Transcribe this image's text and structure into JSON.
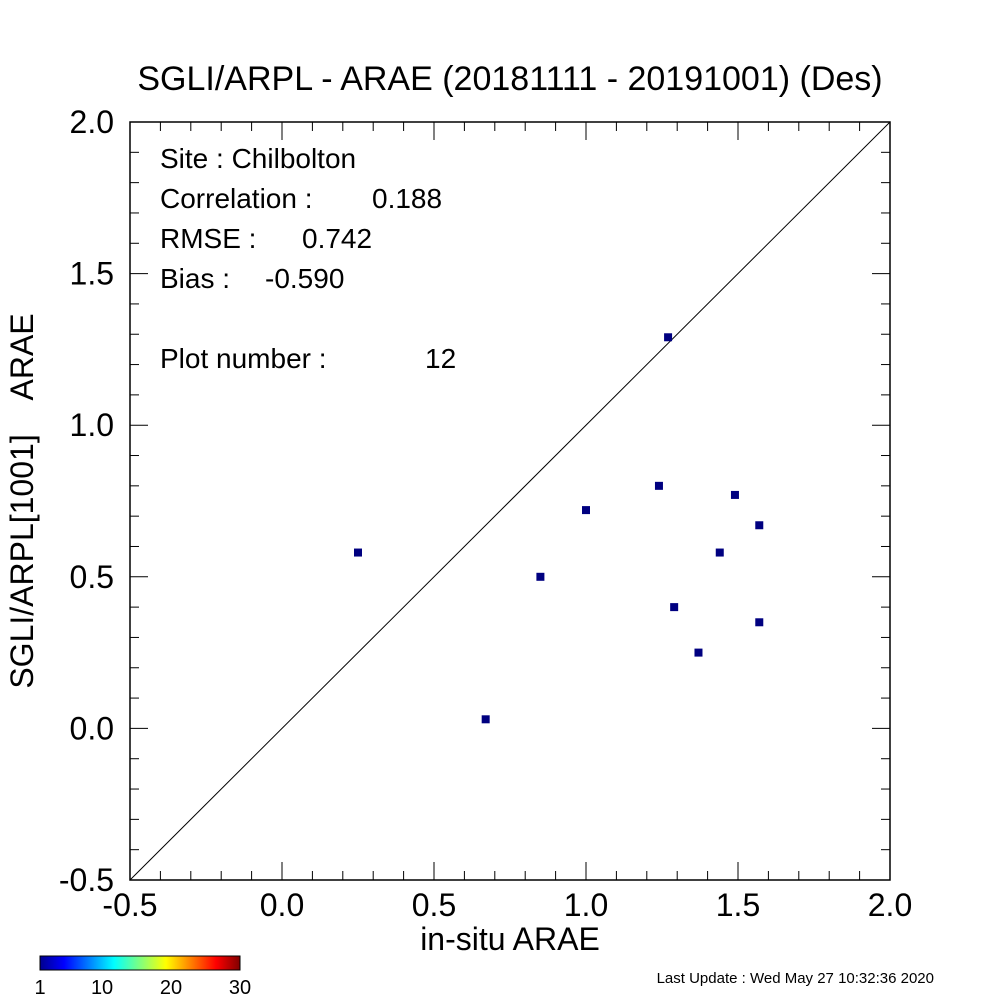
{
  "chart_data": {
    "type": "scatter",
    "title": "SGLI/ARPL - ARAE (20181111 - 20191001) (Des)",
    "xlabel": "in-situ ARAE",
    "ylabel": "SGLI/ARPL[1001]    ARAE",
    "xlim": [
      -0.5,
      2.0
    ],
    "ylim": [
      -0.5,
      2.0
    ],
    "x_ticks": [
      "-0.5",
      "0.0",
      "0.5",
      "1.0",
      "1.5",
      "2.0"
    ],
    "y_ticks": [
      "-0.5",
      "0.0",
      "0.5",
      "1.0",
      "1.5",
      "2.0"
    ],
    "grid": false,
    "reference_line": "1:1",
    "point_color": "#000080",
    "points": [
      {
        "x": 0.25,
        "y": 0.58
      },
      {
        "x": 0.67,
        "y": 0.03
      },
      {
        "x": 0.85,
        "y": 0.5
      },
      {
        "x": 1.0,
        "y": 0.72
      },
      {
        "x": 1.24,
        "y": 0.8
      },
      {
        "x": 1.27,
        "y": 1.29
      },
      {
        "x": 1.29,
        "y": 0.4
      },
      {
        "x": 1.37,
        "y": 0.25
      },
      {
        "x": 1.44,
        "y": 0.58
      },
      {
        "x": 1.49,
        "y": 0.77
      },
      {
        "x": 1.57,
        "y": 0.67
      },
      {
        "x": 1.57,
        "y": 0.35
      }
    ],
    "annotations": {
      "site": "Site : Chilbolton",
      "correlation_label": "Correlation :",
      "correlation": "0.188",
      "rmse_label": "RMSE :",
      "rmse": "0.742",
      "bias_label": "Bias :",
      "bias": "-0.590",
      "plot_number_label": "Plot number :",
      "plot_number": "12"
    },
    "colorbar": {
      "min": 1,
      "max": 30,
      "tick_labels": [
        "1",
        "10",
        "20",
        "30"
      ]
    }
  },
  "footer": {
    "last_update": "Last Update : Wed May 27 10:32:36 2020"
  }
}
